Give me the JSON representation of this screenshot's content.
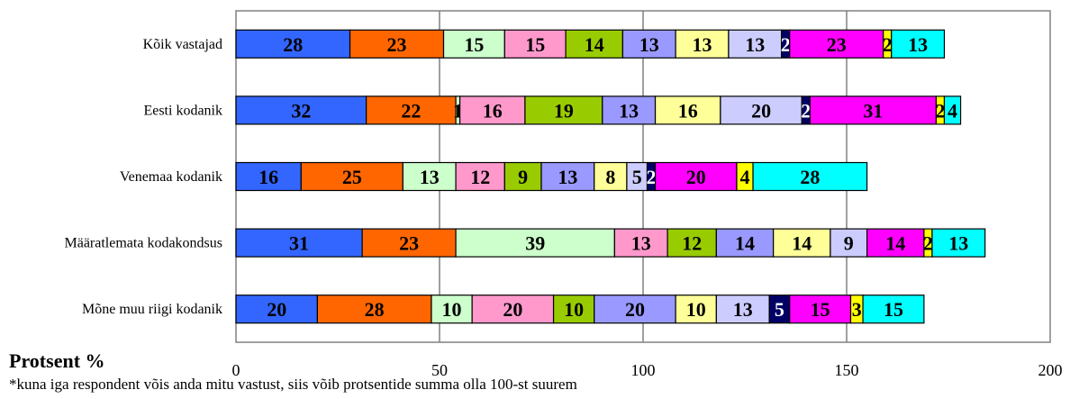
{
  "chart_data": {
    "type": "bar",
    "orientation": "horizontal",
    "stacked": true,
    "categories": [
      "Kõik vastajad",
      "Eesti kodanik",
      "Venemaa kodanik",
      "Määratlemata kodakondsus",
      "Mõne muu riigi kodanik"
    ],
    "series": [
      {
        "color": "#3366ff",
        "values": [
          28,
          32,
          16,
          31,
          20
        ]
      },
      {
        "color": "#ff6600",
        "values": [
          23,
          22,
          25,
          23,
          28
        ]
      },
      {
        "color": "#ccffcc",
        "values": [
          15,
          1,
          13,
          39,
          10
        ]
      },
      {
        "color": "#ff99cc",
        "values": [
          15,
          16,
          12,
          13,
          20
        ]
      },
      {
        "color": "#99cc00",
        "values": [
          14,
          19,
          9,
          12,
          10
        ]
      },
      {
        "color": "#9999ff",
        "values": [
          13,
          13,
          13,
          14,
          20
        ]
      },
      {
        "color": "#ffff99",
        "values": [
          13,
          16,
          8,
          14,
          10
        ]
      },
      {
        "color": "#ccccff",
        "values": [
          13,
          20,
          5,
          9,
          13
        ]
      },
      {
        "color": "#000066",
        "values": [
          2,
          2,
          2,
          0,
          5
        ]
      },
      {
        "color": "#ff00ff",
        "values": [
          23,
          31,
          20,
          14,
          15
        ]
      },
      {
        "color": "#ffff00",
        "values": [
          2,
          2,
          4,
          2,
          3
        ]
      },
      {
        "color": "#00ffff",
        "values": [
          13,
          4,
          28,
          13,
          15
        ]
      }
    ],
    "xlim": [
      0,
      200
    ],
    "xticks": [
      0,
      50,
      100,
      150,
      200
    ],
    "grid": "vertical",
    "xlabel": "Protsent %",
    "note": "*kuna iga respondent võis anda mitu vastust, siis võib protsentide summa olla 100-st suurem",
    "legend": "none"
  }
}
